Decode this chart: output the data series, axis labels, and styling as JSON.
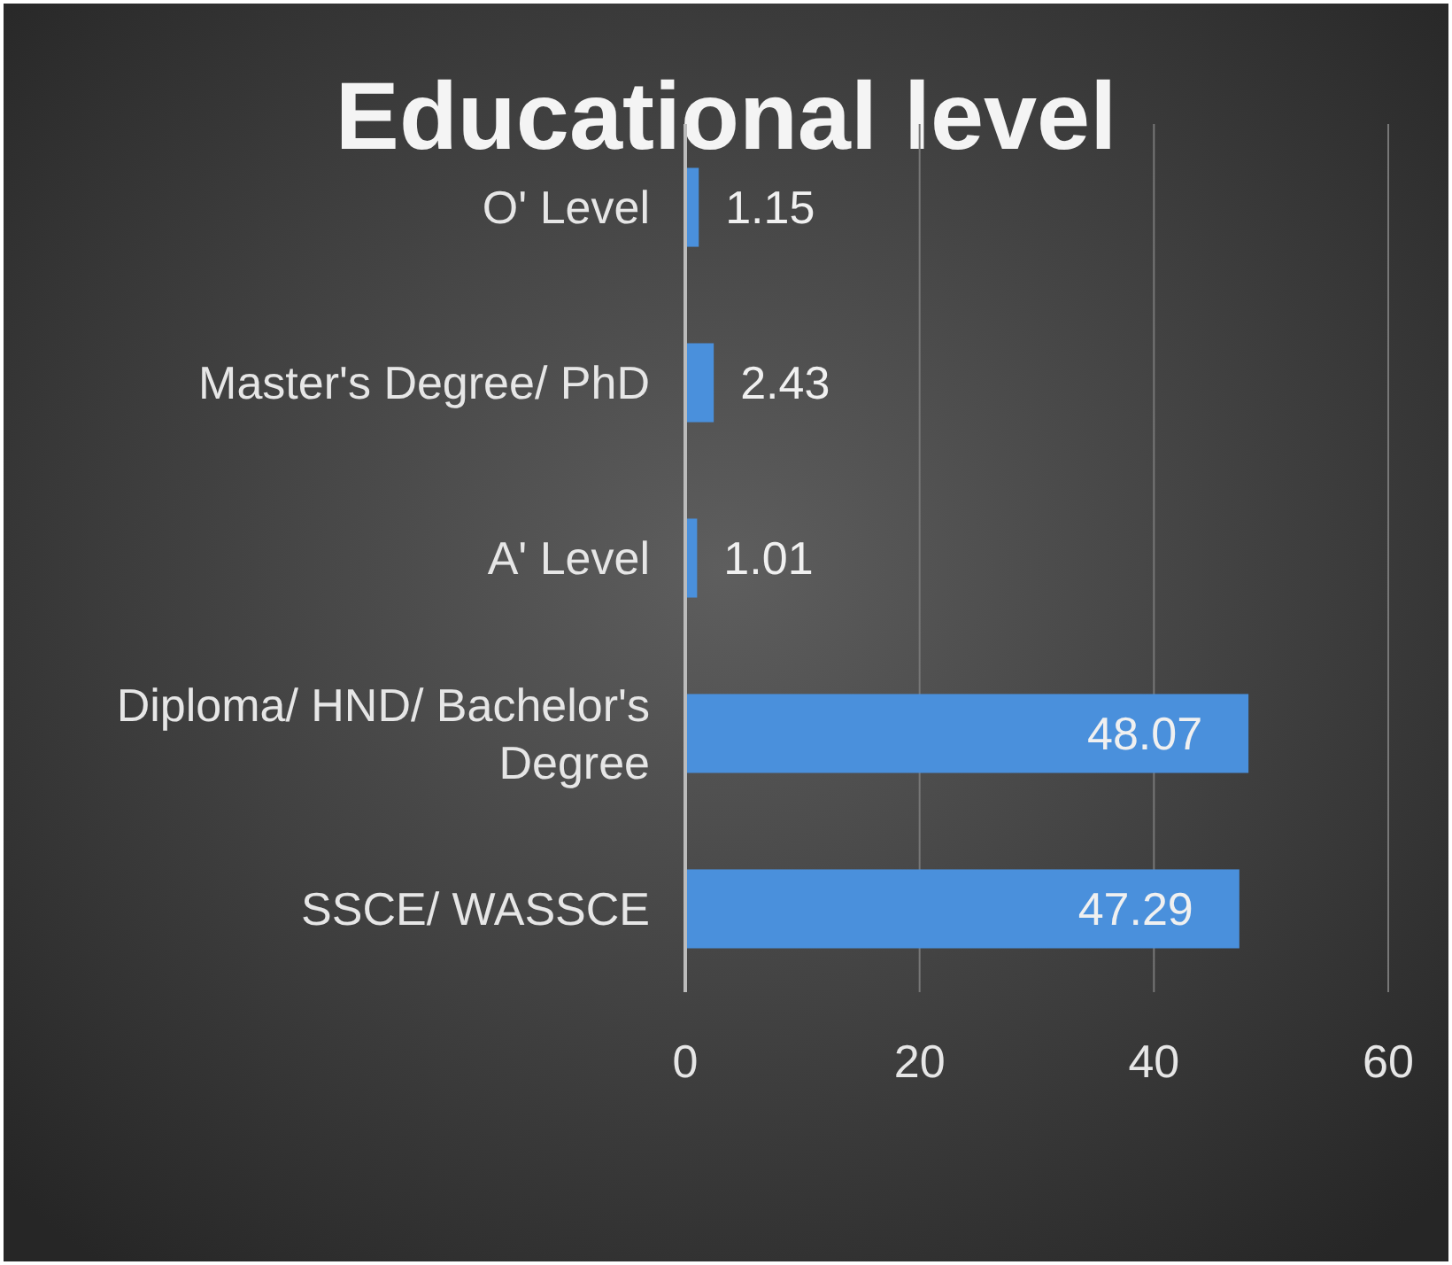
{
  "chart_data": {
    "type": "bar",
    "orientation": "horizontal",
    "title": "Educational level",
    "categories": [
      "O' Level",
      "Master's Degree/ PhD",
      "A' Level",
      "Diploma/ HND/ Bachelor's Degree",
      "SSCE/ WASSCE"
    ],
    "values": [
      1.15,
      2.43,
      1.01,
      48.07,
      47.29
    ],
    "color": "#4a90dc",
    "xlim": [
      0,
      60
    ],
    "xticks": [
      0,
      20,
      40,
      60
    ],
    "grid": "x",
    "data_labels": true
  }
}
